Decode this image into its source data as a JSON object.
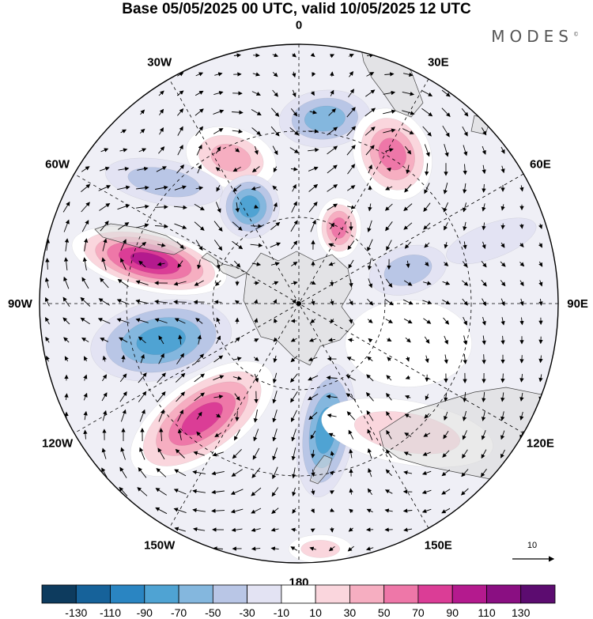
{
  "title": "Base 05/05/2025 00 UTC, valid 10/05/2025 12 UTC",
  "logo": "MODES",
  "logo_mark": "©",
  "longitude_labels": [
    "0",
    "30E",
    "60E",
    "90E",
    "120E",
    "150E",
    "180",
    "150W",
    "120W",
    "90W",
    "60W",
    "30W"
  ],
  "vector_reference": "10",
  "colorbar": {
    "labels": [
      "-130",
      "-110",
      "-90",
      "-70",
      "-50",
      "-30",
      "-10",
      "10",
      "30",
      "50",
      "70",
      "90",
      "110",
      "130"
    ],
    "colors": [
      "#0d3b5e",
      "#16629a",
      "#2a85c2",
      "#4fa3d3",
      "#84b7de",
      "#b9c6e6",
      "#e3e3f3",
      "#ffffff",
      "#fad6dd",
      "#f6aec1",
      "#ee77a8",
      "#db3d96",
      "#b41a8e",
      "#8a0f82",
      "#5c0c70"
    ]
  },
  "anomalies": [
    {
      "id": "pos-0",
      "lon": -25,
      "r": 0.62,
      "sx": 58,
      "sy": 38,
      "rot": 15,
      "v": 60
    },
    {
      "id": "neg-1",
      "lon": 8,
      "r": 0.72,
      "sx": 58,
      "sy": 36,
      "rot": -5,
      "v": -50
    },
    {
      "id": "pos-2",
      "lon": 32,
      "r": 0.68,
      "sx": 48,
      "sy": 60,
      "rot": -25,
      "v": 80
    },
    {
      "id": "pos-3",
      "lon": 28,
      "r": 0.33,
      "sx": 28,
      "sy": 38,
      "rot": 0,
      "v": 70
    },
    {
      "id": "neg-4",
      "lon": -27,
      "r": 0.42,
      "sx": 38,
      "sy": 40,
      "rot": 0,
      "v": -80
    },
    {
      "id": "neg-5",
      "lon": -48,
      "r": 0.7,
      "sx": 75,
      "sy": 28,
      "rot": 10,
      "v": -40
    },
    {
      "id": "pos-6",
      "lon": -74,
      "r": 0.6,
      "sx": 100,
      "sy": 38,
      "rot": 13,
      "v": 120
    },
    {
      "id": "neg-7",
      "lon": 73,
      "r": 0.44,
      "sx": 50,
      "sy": 30,
      "rot": -15,
      "v": -40
    },
    {
      "id": "neg-8",
      "lon": 72,
      "r": 0.78,
      "sx": 60,
      "sy": 22,
      "rot": -20,
      "v": -20
    },
    {
      "id": "neg-9",
      "lon": -105,
      "r": 0.55,
      "sx": 90,
      "sy": 50,
      "rot": -10,
      "v": -80
    },
    {
      "id": "pos-10",
      "lon": -140,
      "r": 0.58,
      "sx": 105,
      "sy": 50,
      "rot": -35,
      "v": 100
    },
    {
      "id": "neg-11",
      "lon": 168,
      "r": 0.5,
      "sx": 36,
      "sy": 85,
      "rot": 8,
      "v": -70
    },
    {
      "id": "pos-12",
      "lon": 110,
      "r": 0.45,
      "sx": 80,
      "sy": 55,
      "rot": 0,
      "v": 20
    },
    {
      "id": "pos-13",
      "lon": 140,
      "r": 0.65,
      "sx": 110,
      "sy": 40,
      "rot": 10,
      "v": 40
    },
    {
      "id": "pos-14",
      "lon": 175,
      "r": 0.95,
      "sx": 40,
      "sy": 18,
      "rot": 0,
      "v": 30
    }
  ]
}
